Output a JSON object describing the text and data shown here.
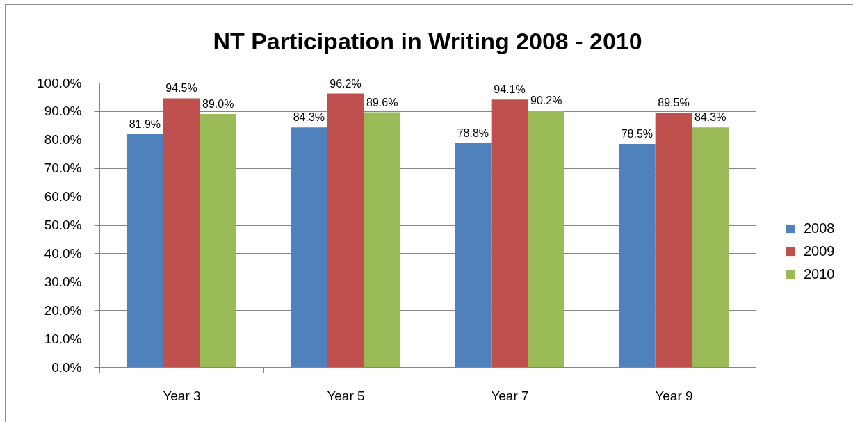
{
  "chart_data": {
    "type": "bar",
    "title": "NT Participation in Writing 2008 - 2010",
    "categories": [
      "Year 3",
      "Year 5",
      "Year 7",
      "Year 9"
    ],
    "series": [
      {
        "name": "2008",
        "color": "#4f81bd",
        "values": [
          81.9,
          84.3,
          78.8,
          78.5
        ],
        "value_labels": [
          "81.9%",
          "84.3%",
          "78.8%",
          "78.5%"
        ]
      },
      {
        "name": "2009",
        "color": "#c0504d",
        "values": [
          94.5,
          96.2,
          94.1,
          89.5
        ],
        "value_labels": [
          "94.5%",
          "96.2%",
          "94.1%",
          "89.5%"
        ]
      },
      {
        "name": "2010",
        "color": "#9bbb59",
        "values": [
          89.0,
          89.6,
          90.2,
          84.3
        ],
        "value_labels": [
          "89.0%",
          "89.6%",
          "90.2%",
          "84.3%"
        ]
      }
    ],
    "ylim": [
      0,
      100
    ],
    "yticks": [
      {
        "value": 0,
        "label": "0.0%"
      },
      {
        "value": 10,
        "label": "10.0%"
      },
      {
        "value": 20,
        "label": "20.0%"
      },
      {
        "value": 30,
        "label": "30.0%"
      },
      {
        "value": 40,
        "label": "40.0%"
      },
      {
        "value": 50,
        "label": "50.0%"
      },
      {
        "value": 60,
        "label": "60.0%"
      },
      {
        "value": 70,
        "label": "70.0%"
      },
      {
        "value": 80,
        "label": "80.0%"
      },
      {
        "value": 90,
        "label": "90.0%"
      },
      {
        "value": 100,
        "label": "100.0%"
      }
    ],
    "grid": "y",
    "legend": "right"
  }
}
